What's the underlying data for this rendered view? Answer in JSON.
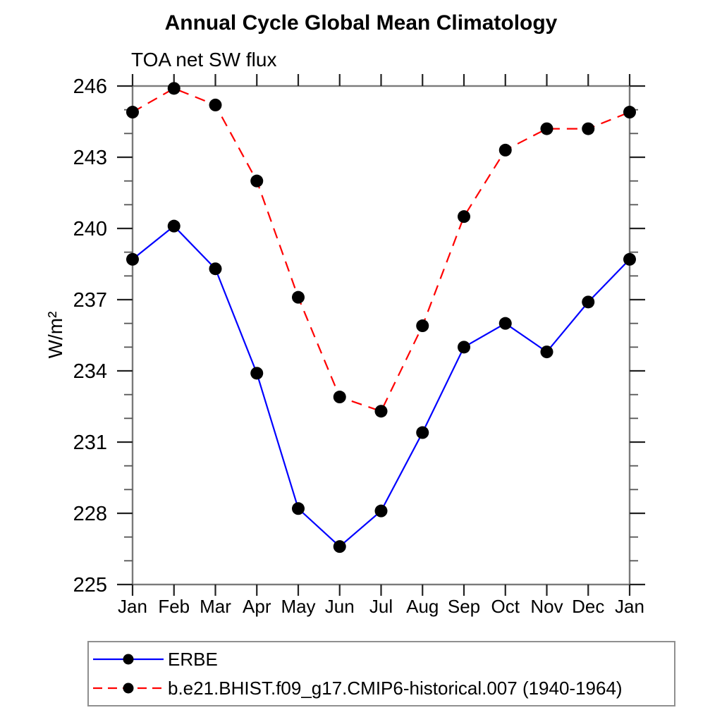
{
  "chart": {
    "title": "Annual Cycle Global Mean Climatology",
    "subtitle": "TOA net SW flux",
    "y_axis_label": "W/m²"
  },
  "chart_data": {
    "type": "line",
    "title": "Annual Cycle Global Mean Climatology",
    "subtitle": "TOA net SW flux",
    "xlabel": "",
    "ylabel": "W/m²",
    "x_tick_labels": [
      "Jan",
      "Feb",
      "Mar",
      "Apr",
      "May",
      "Jun",
      "Jul",
      "Aug",
      "Sep",
      "Oct",
      "Nov",
      "Dec",
      "Jan"
    ],
    "ylim": [
      225,
      246
    ],
    "y_major_step": 3,
    "y_minor_step": 1,
    "y_tick_labels": [
      "225",
      "228",
      "231",
      "234",
      "237",
      "240",
      "243",
      "246"
    ],
    "grid": false,
    "legend_position": "bottom-left",
    "series": [
      {
        "name": "ERBE",
        "color": "#0000ff",
        "line_style": "solid",
        "marker": "circle",
        "marker_color": "#000000",
        "values": [
          238.7,
          240.1,
          238.3,
          233.9,
          228.2,
          226.6,
          228.1,
          231.4,
          235.0,
          236.0,
          234.8,
          236.9,
          238.7
        ]
      },
      {
        "name": "b.e21.BHIST.f09_g17.CMIP6-historical.007 (1940-1964)",
        "color": "#ff0000",
        "line_style": "dashed",
        "marker": "circle",
        "marker_color": "#000000",
        "values": [
          244.9,
          245.9,
          245.2,
          242.0,
          237.1,
          232.9,
          232.3,
          235.9,
          240.5,
          243.3,
          244.2,
          244.2,
          244.9
        ]
      }
    ],
    "colors": {
      "frame": "#7a7a7a",
      "tick_major": "#222222",
      "tick_minor": "#555555",
      "legend_border": "#8f8f8f",
      "text": "#000000"
    }
  }
}
